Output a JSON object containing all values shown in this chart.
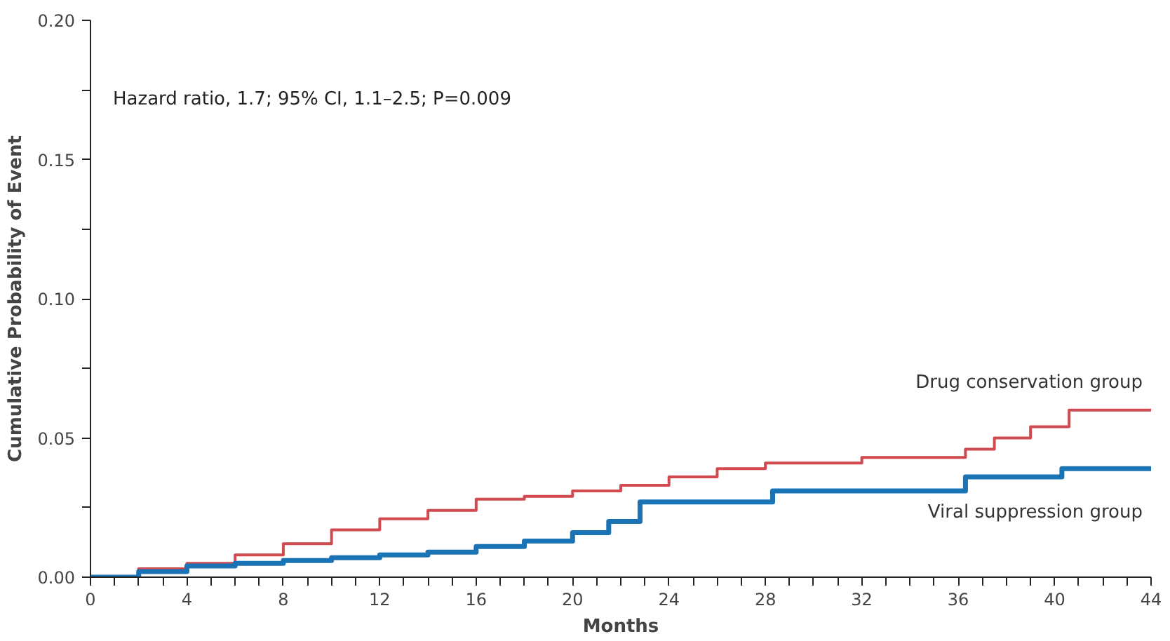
{
  "chart_data": {
    "type": "step",
    "xlabel": "Months",
    "ylabel": "Cumulative Probability of Event",
    "annotations": [
      "Hazard ratio, 1.7; 95% CI, 1.1–2.5; P=0.009"
    ],
    "xlim": [
      0,
      44
    ],
    "ylim": [
      0,
      0.2
    ],
    "xticks": [
      0,
      {
        "value": 1,
        "label": null
      },
      {
        "value": 2,
        "label": null
      },
      {
        "value": 3,
        "label": null
      },
      4,
      {
        "value": 5,
        "label": null
      },
      {
        "value": 6,
        "label": null
      },
      {
        "value": 7,
        "label": null
      },
      8,
      {
        "value": 9,
        "label": null
      },
      {
        "value": 10,
        "label": null
      },
      {
        "value": 11,
        "label": null
      },
      12,
      {
        "value": 13,
        "label": null
      },
      {
        "value": 14,
        "label": null
      },
      {
        "value": 15,
        "label": null
      },
      16,
      {
        "value": 17,
        "label": null
      },
      {
        "value": 18,
        "label": null
      },
      {
        "value": 19,
        "label": null
      },
      20,
      {
        "value": 21,
        "label": null
      },
      {
        "value": 22,
        "label": null
      },
      {
        "value": 23,
        "label": null
      },
      24,
      {
        "value": 25,
        "label": null
      },
      {
        "value": 26,
        "label": null
      },
      {
        "value": 27,
        "label": null
      },
      28,
      {
        "value": 29,
        "label": null
      },
      {
        "value": 30,
        "label": null
      },
      {
        "value": 31,
        "label": null
      },
      32,
      {
        "value": 33,
        "label": null
      },
      {
        "value": 34,
        "label": null
      },
      {
        "value": 35,
        "label": null
      },
      36,
      {
        "value": 37,
        "label": null
      },
      {
        "value": 38,
        "label": null
      },
      {
        "value": 39,
        "label": null
      },
      40,
      {
        "value": 41,
        "label": null
      },
      {
        "value": 42,
        "label": null
      },
      {
        "value": 43,
        "label": null
      },
      44
    ],
    "yticks": [
      {
        "value": 0,
        "label": "0.00"
      },
      {
        "value": 0.025,
        "label": null
      },
      0.05,
      {
        "value": 0.075,
        "label": null
      },
      {
        "value": 0.1,
        "label": "0.10"
      },
      {
        "value": 0.125,
        "label": null
      },
      0.15,
      {
        "value": 0.175,
        "label": null
      },
      {
        "value": 0.2,
        "label": "0.20"
      }
    ],
    "grid": false,
    "line_style": "solid",
    "series": [
      {
        "name": "Drug conservation group",
        "color": "#d04a4f",
        "x": [
          0,
          2,
          4,
          6,
          8,
          10,
          12,
          14,
          16,
          18,
          20,
          22,
          24,
          26,
          28,
          32,
          36.3,
          37.5,
          39,
          40.6,
          44
        ],
        "values": [
          0,
          0.003,
          0.005,
          0.008,
          0.012,
          0.017,
          0.021,
          0.024,
          0.028,
          0.029,
          0.031,
          0.033,
          0.036,
          0.039,
          0.041,
          0.043,
          0.046,
          0.05,
          0.054,
          0.06,
          0.06
        ]
      },
      {
        "name": "Viral suppression group",
        "color": "#1a73b4",
        "x": [
          0,
          2,
          4,
          6,
          8,
          10,
          12,
          14,
          16,
          18,
          20,
          21.5,
          22.8,
          28.3,
          36.3,
          40.3,
          44
        ],
        "values": [
          0,
          0.002,
          0.004,
          0.005,
          0.006,
          0.007,
          0.008,
          0.009,
          0.011,
          0.013,
          0.016,
          0.02,
          0.027,
          0.031,
          0.036,
          0.039,
          0.039
        ]
      }
    ]
  }
}
